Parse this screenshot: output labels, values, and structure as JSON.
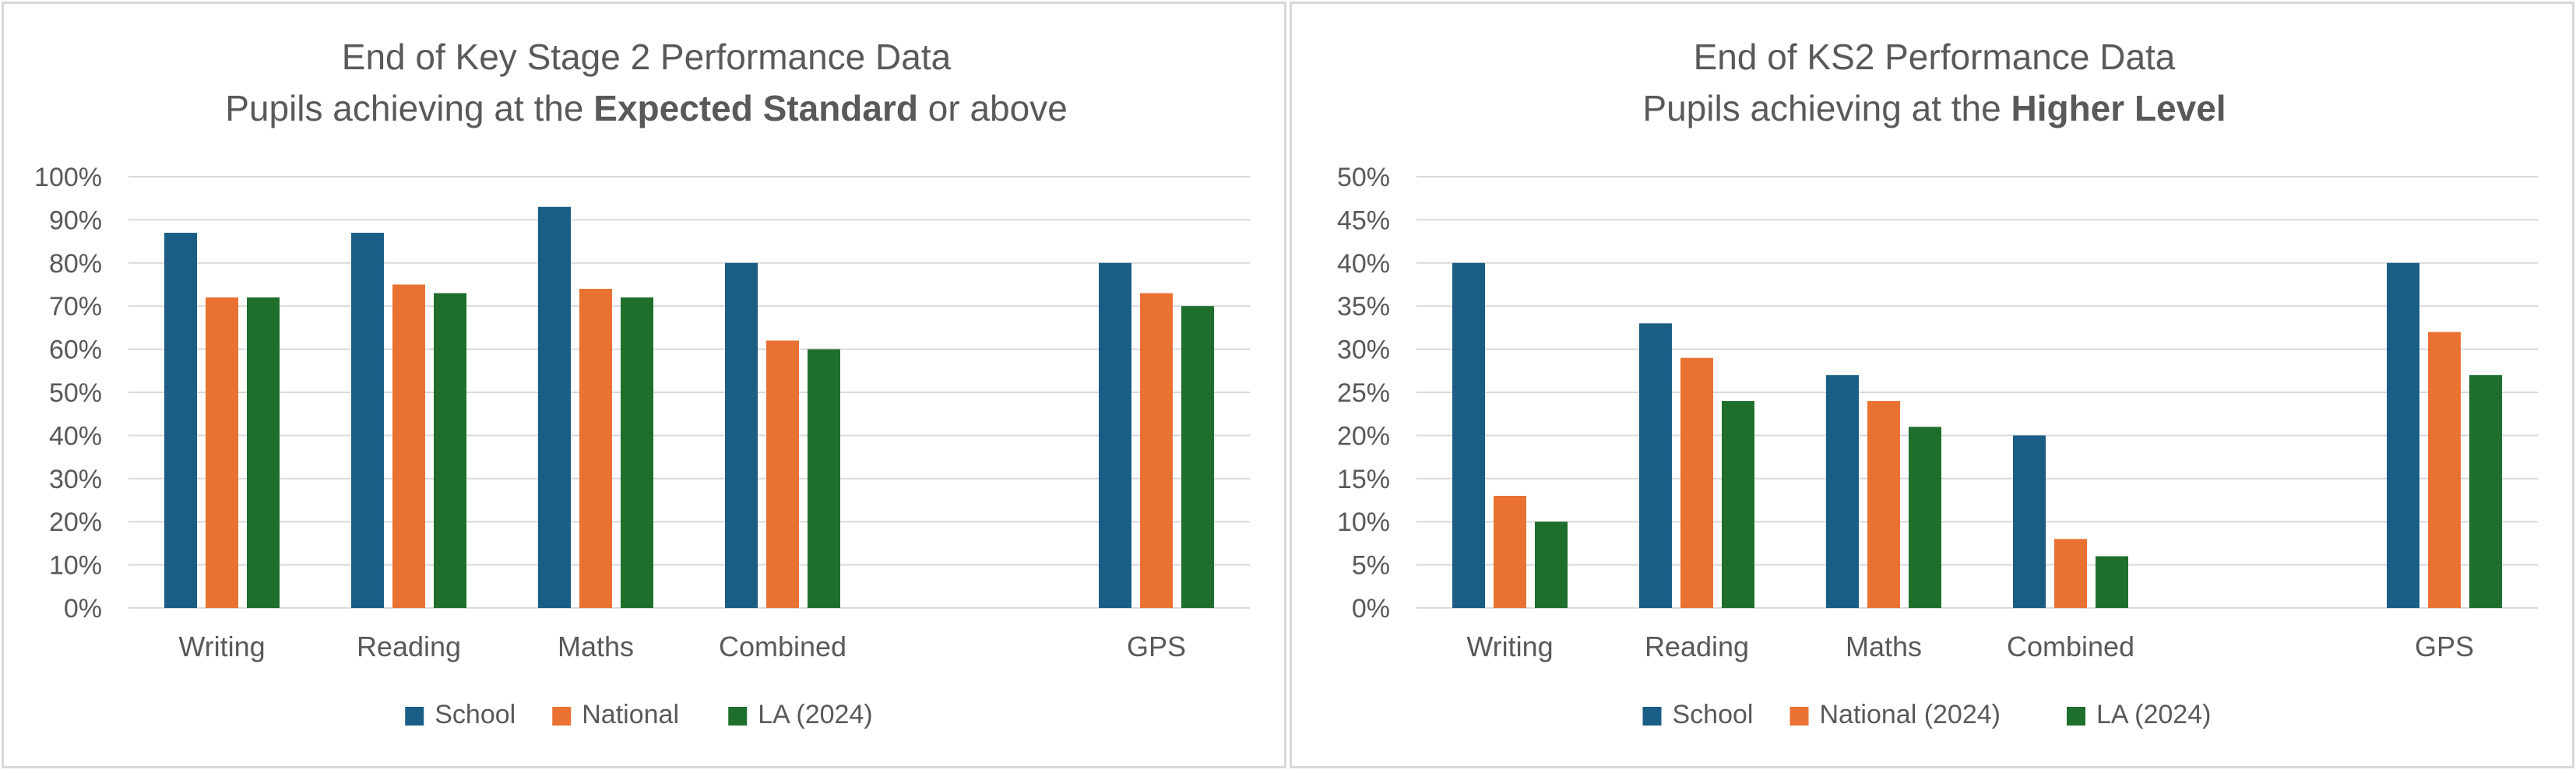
{
  "colors": {
    "School": "#1a5e85",
    "National": "#e97132",
    "LA": "#1f6f2c",
    "grid": "#d9d9d9",
    "text": "#595959"
  },
  "chart_data": [
    {
      "type": "bar",
      "title_line1": "End of Key Stage 2 Performance Data",
      "title_line2_prefix": "Pupils achieving at the ",
      "title_line2_bold": "Expected Standard",
      "title_line2_suffix": " or above",
      "categories": [
        "Writing",
        "Reading",
        "Maths",
        "Combined",
        "",
        "GPS"
      ],
      "series": [
        {
          "name": "School",
          "values": [
            87,
            87,
            93,
            80,
            null,
            80
          ]
        },
        {
          "name": "National",
          "values": [
            72,
            75,
            74,
            62,
            null,
            73
          ]
        },
        {
          "name": "LA (2024)",
          "values": [
            72,
            73,
            72,
            60,
            null,
            70
          ]
        }
      ],
      "ylim": [
        0,
        100
      ],
      "yticks": [
        "0%",
        "10%",
        "20%",
        "30%",
        "40%",
        "50%",
        "60%",
        "70%",
        "80%",
        "90%",
        "100%"
      ],
      "ytick_values": [
        0,
        10,
        20,
        30,
        40,
        50,
        60,
        70,
        80,
        90,
        100
      ],
      "grid": true,
      "legend": "bottom"
    },
    {
      "type": "bar",
      "title_line1": "End of KS2 Performance Data",
      "title_line2_prefix": "Pupils achieving at the ",
      "title_line2_bold": "Higher Level",
      "title_line2_suffix": "",
      "categories": [
        "Writing",
        "Reading",
        "Maths",
        "Combined",
        "",
        "GPS"
      ],
      "series": [
        {
          "name": "School",
          "values": [
            40,
            33,
            27,
            20,
            null,
            40
          ]
        },
        {
          "name": "National (2024)",
          "values": [
            13,
            29,
            24,
            8,
            null,
            32
          ]
        },
        {
          "name": "LA (2024)",
          "values": [
            10,
            24,
            21,
            6,
            null,
            27
          ]
        }
      ],
      "ylim": [
        0,
        50
      ],
      "yticks": [
        "0%",
        "5%",
        "10%",
        "15%",
        "20%",
        "25%",
        "30%",
        "35%",
        "40%",
        "45%",
        "50%"
      ],
      "ytick_values": [
        0,
        5,
        10,
        15,
        20,
        25,
        30,
        35,
        40,
        45,
        50
      ],
      "grid": true,
      "legend": "bottom"
    }
  ]
}
